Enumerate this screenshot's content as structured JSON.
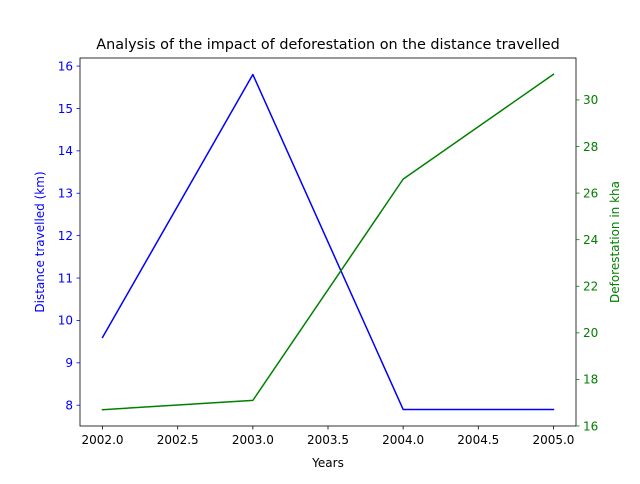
{
  "chart_data": {
    "type": "line",
    "title": "Analysis of the impact of deforestation on the distance travelled",
    "xlabel": "Years",
    "x": [
      2002,
      2003,
      2004,
      2005
    ],
    "xlim": [
      2001.85,
      2005.15
    ],
    "xticks": [
      2002.0,
      2002.5,
      2003.0,
      2003.5,
      2004.0,
      2004.5,
      2005.0
    ],
    "xtick_labels": [
      "2002.0",
      "2002.5",
      "2003.0",
      "2003.5",
      "2004.0",
      "2004.5",
      "2005.0"
    ],
    "grid": false,
    "legend": "none",
    "series": [
      {
        "axis": "left",
        "color": "#0000ff",
        "values": [
          9.6,
          15.8,
          7.9,
          7.9
        ]
      },
      {
        "axis": "right",
        "color": "#008000",
        "values": [
          16.7,
          17.1,
          26.6,
          31.1
        ]
      }
    ],
    "y_left": {
      "label": "Distance travelled (km)",
      "color": "#0000ff",
      "lim": [
        7.51,
        16.19
      ],
      "ticks": [
        8,
        9,
        10,
        11,
        12,
        13,
        14,
        15,
        16
      ],
      "tick_labels": [
        "8",
        "9",
        "10",
        "11",
        "12",
        "13",
        "14",
        "15",
        "16"
      ]
    },
    "y_right": {
      "label": "Deforestation in kha",
      "color": "#008000",
      "lim": [
        16.0,
        31.8
      ],
      "ticks": [
        16,
        18,
        20,
        22,
        24,
        26,
        28,
        30
      ],
      "tick_labels": [
        "16",
        "18",
        "20",
        "22",
        "24",
        "26",
        "28",
        "30"
      ]
    }
  }
}
